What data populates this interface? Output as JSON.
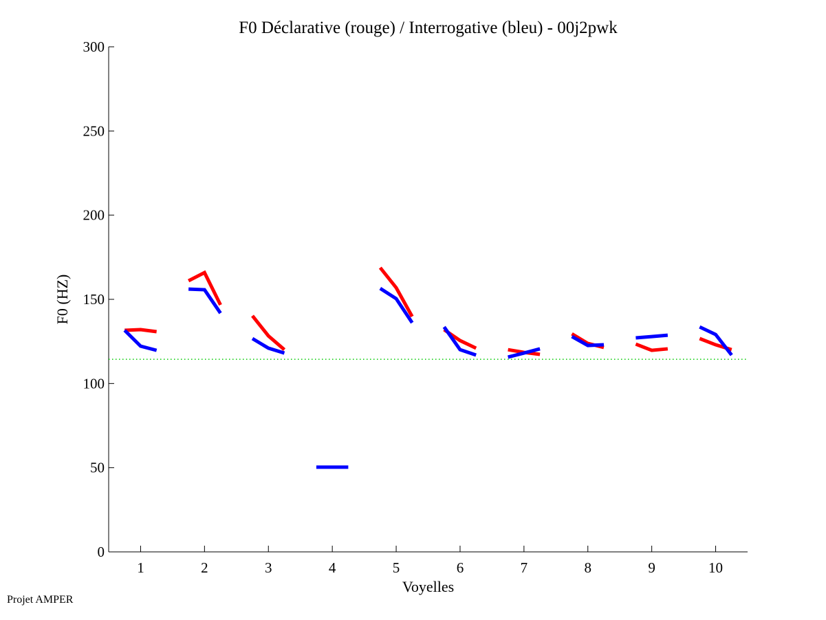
{
  "chart_data": {
    "type": "line",
    "title": "F0 Déclarative (rouge) / Interrogative (bleu) - 00j2pwk",
    "xlabel": "Voyelles",
    "ylabel": "F0 (HZ)",
    "xlim": [
      0.5,
      10.5
    ],
    "ylim": [
      0,
      300
    ],
    "xticks": [
      1,
      2,
      3,
      4,
      5,
      6,
      7,
      8,
      9,
      10
    ],
    "yticks": [
      0,
      50,
      100,
      150,
      200,
      250,
      300
    ],
    "grid": false,
    "reference_line": {
      "name": "baseline",
      "value": 114.4,
      "color": "#00cc00",
      "style": "dotted"
    },
    "series": [
      {
        "name": "Déclarative (rouge)",
        "color": "#ff0000",
        "segments": [
          {
            "vowel": 1,
            "values": [
              131.6,
              132.0,
              130.8
            ]
          },
          {
            "vowel": 2,
            "values": [
              161.0,
              165.9,
              146.7
            ]
          },
          {
            "vowel": 3,
            "values": [
              140.2,
              128.3,
              120.1
            ]
          },
          {
            "vowel": 5,
            "values": [
              168.8,
              156.9,
              139.8
            ]
          },
          {
            "vowel": 6,
            "values": [
              132.0,
              125.5,
              121.0
            ]
          },
          {
            "vowel": 7,
            "values": [
              120.1,
              118.5,
              117.3
            ]
          },
          {
            "vowel": 8,
            "values": [
              129.5,
              123.8,
              121.4
            ]
          },
          {
            "vowel": 9,
            "values": [
              123.4,
              119.7,
              120.6
            ]
          },
          {
            "vowel": 10,
            "values": [
              126.7,
              123.0,
              120.1
            ]
          }
        ]
      },
      {
        "name": "Interrogative (bleu)",
        "color": "#0000ff",
        "segments": [
          {
            "vowel": 1,
            "values": [
              131.6,
              122.2,
              119.7
            ]
          },
          {
            "vowel": 2,
            "values": [
              156.1,
              155.7,
              141.8
            ]
          },
          {
            "vowel": 3,
            "values": [
              126.7,
              121.0,
              118.1
            ]
          },
          {
            "vowel": 4,
            "values": [
              50.3,
              50.3,
              50.3
            ]
          },
          {
            "vowel": 5,
            "values": [
              156.5,
              150.4,
              136.1
            ]
          },
          {
            "vowel": 6,
            "values": [
              133.6,
              120.1,
              116.9
            ]
          },
          {
            "vowel": 7,
            "values": [
              115.7,
              118.1,
              120.6
            ]
          },
          {
            "vowel": 8,
            "values": [
              127.9,
              122.6,
              123.0
            ]
          },
          {
            "vowel": 9,
            "values": [
              127.1,
              127.9,
              128.7
            ]
          },
          {
            "vowel": 10,
            "values": [
              133.6,
              129.1,
              116.9
            ]
          }
        ]
      }
    ]
  },
  "footer": {
    "text": "Projet AMPER"
  }
}
